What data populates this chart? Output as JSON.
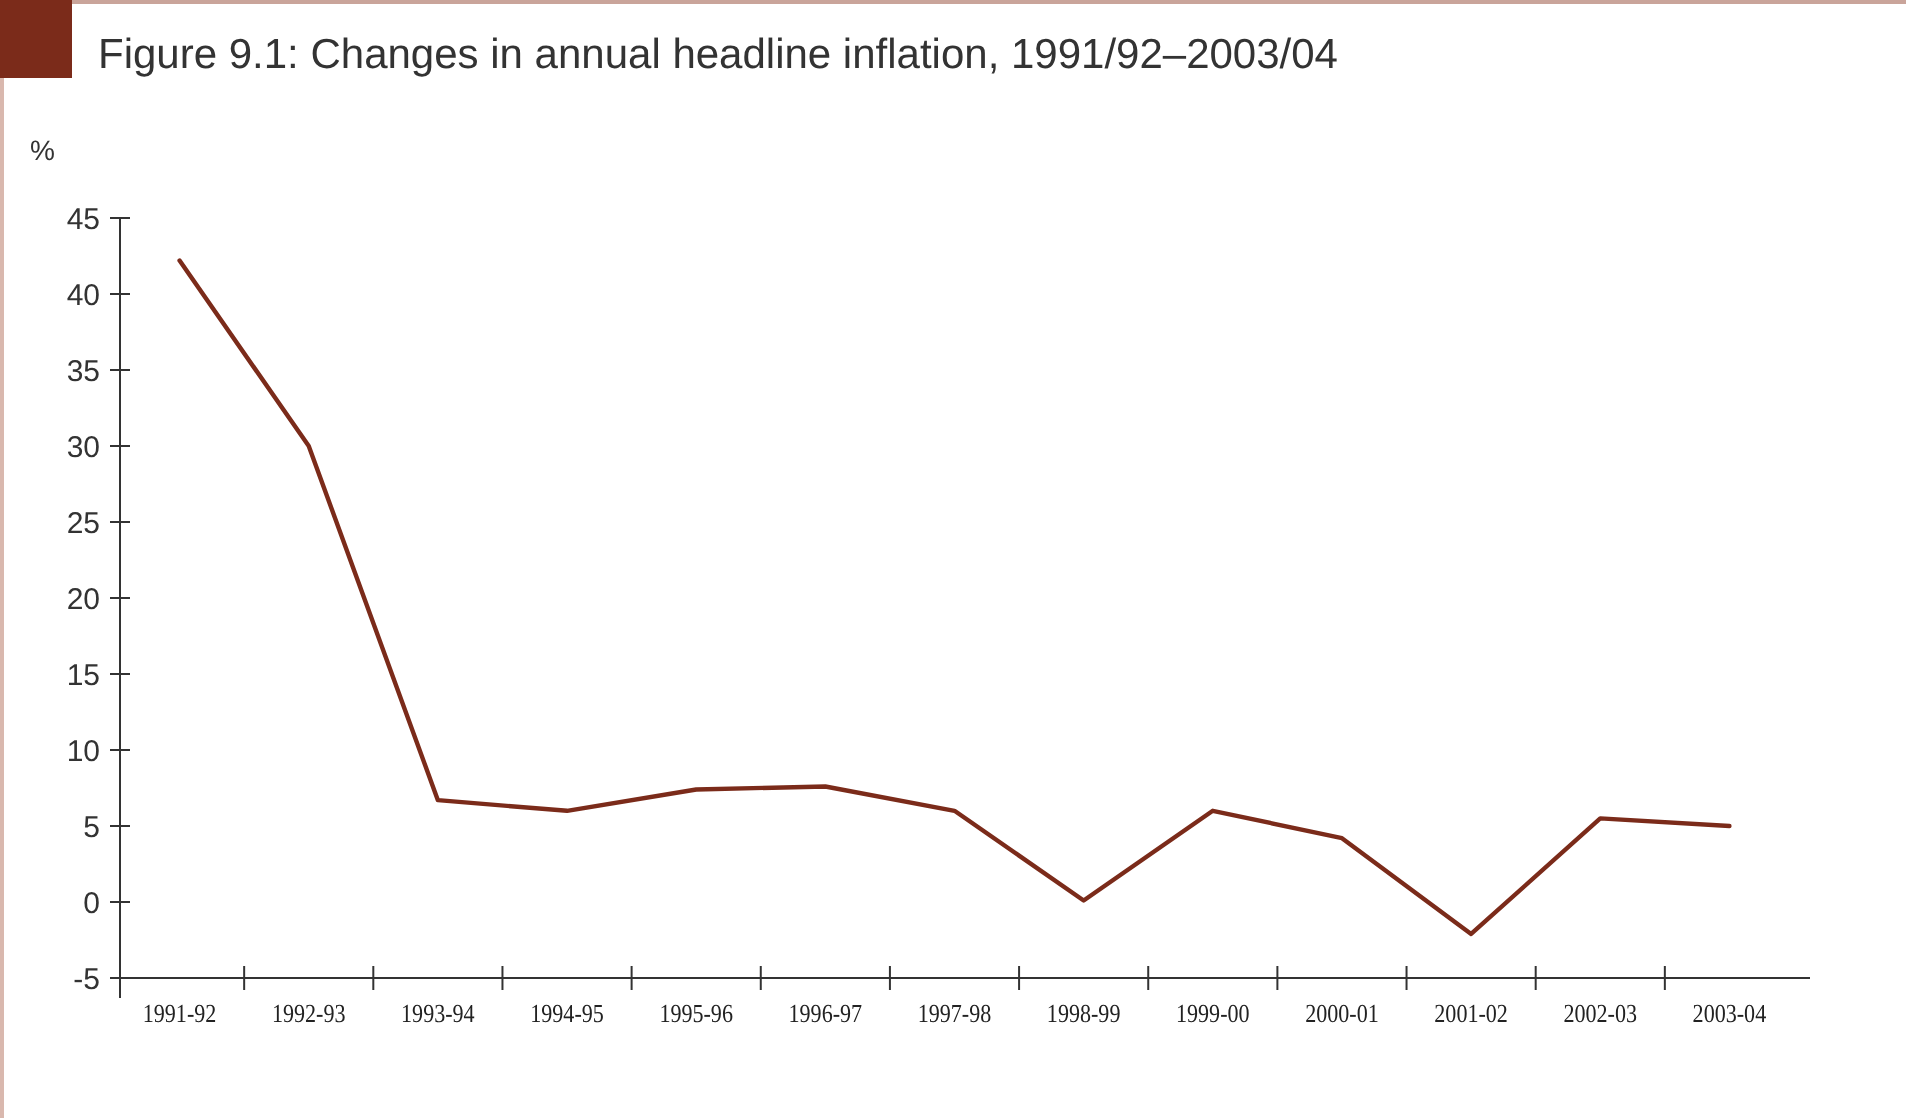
{
  "chart_data": {
    "type": "line",
    "title": "Figure 9.1: Changes in annual headline inflation, 1991/92–2003/04",
    "ylabel": "%",
    "categories": [
      "1991-92",
      "1992-93",
      "1993-94",
      "1994-95",
      "1995-96",
      "1996-97",
      "1997-98",
      "1998-99",
      "1999-00",
      "2000-01",
      "2001-02",
      "2002-03",
      "2003-04"
    ],
    "series": [
      {
        "color": "#7b2b1a",
        "values": [
          42.2,
          30.0,
          6.7,
          6.0,
          7.4,
          7.6,
          6.0,
          0.1,
          6.0,
          4.2,
          -2.1,
          5.5,
          5.0
        ]
      }
    ],
    "ylim": [
      -5,
      45
    ],
    "yticks": [
      -5,
      0,
      5,
      10,
      15,
      20,
      25,
      30,
      35,
      40,
      45
    ],
    "grid": false,
    "marker": "none",
    "line_style": "solid"
  }
}
